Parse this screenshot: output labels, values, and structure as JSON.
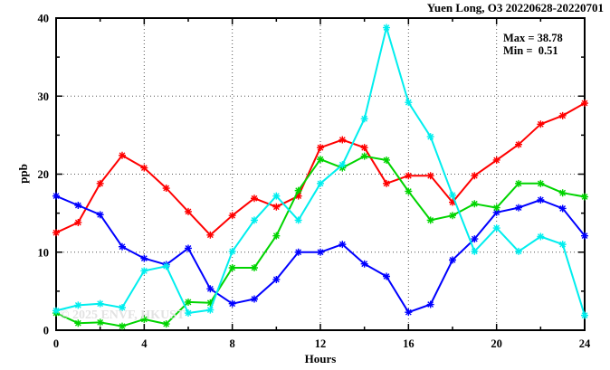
{
  "title": "Yuen Long, O3 20220628-20220701",
  "annotations": {
    "max_label": "Max = 38.78",
    "min_label": "Min =  0.51"
  },
  "watermark": "© 2025  ENVF, HKUST",
  "chart_data": {
    "type": "line",
    "title": "Yuen Long, O3 20220628-20220701",
    "xlabel": "Hours",
    "ylabel": "ppb",
    "xlim": [
      0,
      24
    ],
    "ylim": [
      0,
      40
    ],
    "x_major_ticks": [
      0,
      4,
      8,
      12,
      16,
      20,
      24
    ],
    "x_minor_step": 2,
    "y_major_ticks": [
      0,
      10,
      20,
      30,
      40
    ],
    "y_minor_ticks": [
      5,
      15,
      25,
      35
    ],
    "grid_x": [
      4,
      8,
      12,
      16,
      20
    ],
    "grid_y": [
      10,
      20,
      30
    ],
    "grid_on": true,
    "legend": "none",
    "max_value": 38.78,
    "min_value": 0.51,
    "x": [
      0,
      1,
      2,
      3,
      4,
      5,
      6,
      7,
      8,
      9,
      10,
      11,
      12,
      13,
      14,
      15,
      16,
      17,
      18,
      19,
      20,
      21,
      22,
      23,
      24
    ],
    "series": [
      {
        "name": "series-red",
        "color": "#ff0000",
        "values": [
          12.5,
          13.8,
          18.8,
          22.4,
          20.8,
          18.2,
          15.2,
          12.2,
          14.7,
          16.9,
          15.8,
          17.2,
          23.4,
          24.4,
          23.4,
          18.8,
          19.8,
          19.8,
          16.4,
          19.8,
          21.8,
          23.8,
          26.4,
          27.5,
          29.1
        ]
      },
      {
        "name": "series-blue",
        "color": "#0000ff",
        "values": [
          17.2,
          16.0,
          14.8,
          10.7,
          9.2,
          8.4,
          10.5,
          5.3,
          3.4,
          4.0,
          6.5,
          10.0,
          10.0,
          11.0,
          8.5,
          6.9,
          2.3,
          3.3,
          9.0,
          11.7,
          15.1,
          15.7,
          16.7,
          15.6,
          12.1
        ]
      },
      {
        "name": "series-green",
        "color": "#00d400",
        "values": [
          2.2,
          0.9,
          1.0,
          0.51,
          1.4,
          0.8,
          3.6,
          3.5,
          8.0,
          8.0,
          12.1,
          17.9,
          21.9,
          20.8,
          22.3,
          21.8,
          17.8,
          14.1,
          14.7,
          16.2,
          15.7,
          18.8,
          18.8,
          17.6,
          17.1
        ]
      },
      {
        "name": "series-cyan",
        "color": "#00eeee",
        "values": [
          2.5,
          3.2,
          3.4,
          2.9,
          7.6,
          8.2,
          2.2,
          2.6,
          10.1,
          14.1,
          17.2,
          14.1,
          18.8,
          21.2,
          27.1,
          38.78,
          29.2,
          24.8,
          17.3,
          10.1,
          13.1,
          10.1,
          12.0,
          11.0,
          1.9
        ]
      }
    ]
  },
  "colors": {
    "axis": "#000000",
    "grid": "#555555",
    "background": "#ffffff",
    "watermark": "#e2e2e2"
  }
}
